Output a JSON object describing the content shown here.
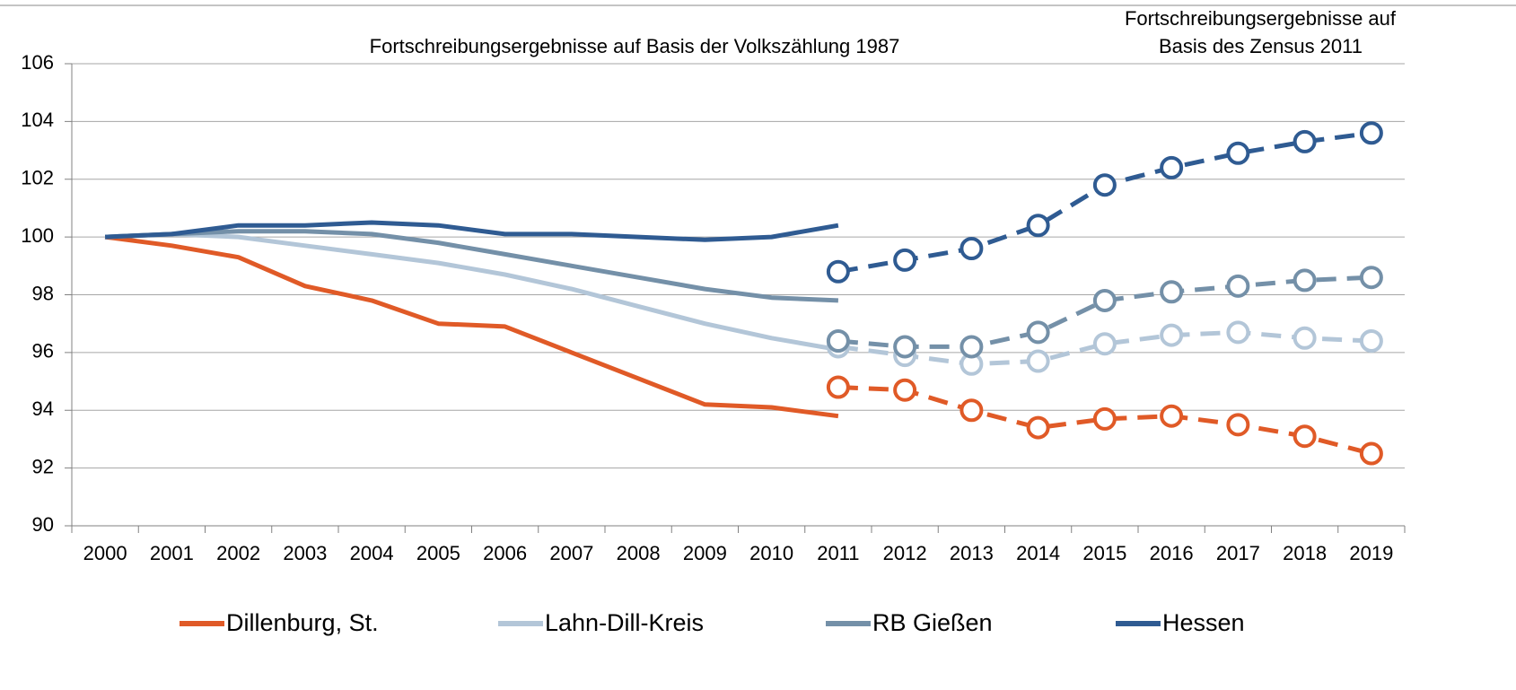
{
  "chart_data": {
    "type": "line",
    "annotations": [
      "Fortschreibungsergebnisse auf Basis der Volkszählung 1987",
      [
        "Fortschreibungsergebnisse auf",
        "Basis des Zensus 2011"
      ]
    ],
    "categories": [
      "2000",
      "2001",
      "2002",
      "2003",
      "2004",
      "2005",
      "2006",
      "2007",
      "2008",
      "2009",
      "2010",
      "2011",
      "2012",
      "2013",
      "2014",
      "2015",
      "2016",
      "2017",
      "2018",
      "2019"
    ],
    "series": [
      {
        "name": "Dillenburg, St.",
        "color": "#e05a27",
        "values": [
          100,
          99.7,
          99.3,
          98.3,
          97.8,
          97.0,
          96.9,
          96.0,
          95.1,
          94.2,
          94.1,
          93.8,
          null,
          null,
          null,
          null,
          null,
          null,
          null,
          null
        ],
        "zensus_values": [
          null,
          null,
          null,
          null,
          null,
          null,
          null,
          null,
          null,
          null,
          null,
          94.8,
          94.7,
          94.0,
          93.4,
          93.7,
          93.8,
          93.5,
          93.1,
          92.5
        ]
      },
      {
        "name": "Lahn-Dill-Kreis",
        "color": "#b3c6d8",
        "values": [
          100,
          100.1,
          100.0,
          99.7,
          99.4,
          99.1,
          98.7,
          98.2,
          97.6,
          97.0,
          96.5,
          96.1,
          null,
          null,
          null,
          null,
          null,
          null,
          null,
          null
        ],
        "zensus_values": [
          null,
          null,
          null,
          null,
          null,
          null,
          null,
          null,
          null,
          null,
          null,
          96.2,
          95.9,
          95.6,
          95.7,
          96.3,
          96.6,
          96.7,
          96.5,
          96.4
        ]
      },
      {
        "name": "RB Gießen",
        "color": "#7490a8",
        "values": [
          100,
          100.1,
          100.2,
          100.2,
          100.1,
          99.8,
          99.4,
          99.0,
          98.6,
          98.2,
          97.9,
          97.8,
          null,
          null,
          null,
          null,
          null,
          null,
          null,
          null
        ],
        "zensus_values": [
          null,
          null,
          null,
          null,
          null,
          null,
          null,
          null,
          null,
          null,
          null,
          96.4,
          96.2,
          96.2,
          96.7,
          97.8,
          98.1,
          98.3,
          98.5,
          98.6
        ]
      },
      {
        "name": "Hessen",
        "color": "#2f5b92",
        "values": [
          100,
          100.1,
          100.4,
          100.4,
          100.5,
          100.4,
          100.1,
          100.1,
          100.0,
          99.9,
          100.0,
          100.4,
          null,
          null,
          null,
          null,
          null,
          null,
          null,
          null
        ],
        "zensus_values": [
          null,
          null,
          null,
          null,
          null,
          null,
          null,
          null,
          null,
          null,
          null,
          98.8,
          99.2,
          99.6,
          100.4,
          101.8,
          102.4,
          102.9,
          103.3,
          103.6
        ]
      }
    ],
    "ylim": [
      90,
      106
    ],
    "yticks": [
      90,
      92,
      94,
      96,
      98,
      100,
      102,
      104,
      106
    ],
    "grid": true
  }
}
